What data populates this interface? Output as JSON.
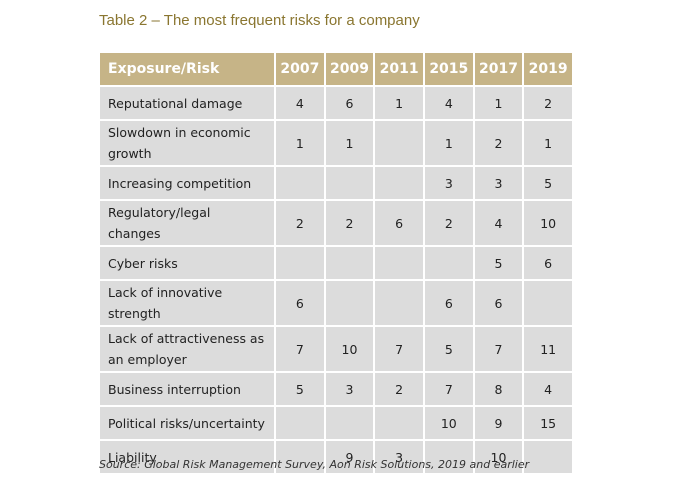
{
  "title": "Table 2 – The most frequent risks for a company",
  "table": {
    "header": [
      "Exposure/Risk",
      "2007",
      "2009",
      "2011",
      "2015",
      "2017",
      "2019"
    ],
    "rows": [
      [
        "Reputational damage",
        4,
        6,
        1,
        4,
        1,
        2
      ],
      [
        "Slowdown in economic growth",
        1,
        1,
        null,
        1,
        2,
        1
      ],
      [
        "Increasing competition",
        null,
        null,
        null,
        3,
        3,
        5
      ],
      [
        "Regulatory/legal changes",
        2,
        2,
        6,
        2,
        4,
        10
      ],
      [
        "Cyber risks",
        null,
        null,
        null,
        null,
        5,
        6
      ],
      [
        "Lack of innovative strength",
        6,
        null,
        null,
        6,
        6,
        null
      ],
      [
        "Lack of attractiveness as an employer",
        7,
        10,
        7,
        5,
        7,
        11
      ],
      [
        "Business interruption",
        5,
        3,
        2,
        7,
        8,
        4
      ],
      [
        "Political risks/uncertainty",
        null,
        null,
        null,
        10,
        9,
        15
      ],
      [
        "Liability",
        null,
        9,
        3,
        null,
        10,
        null
      ]
    ]
  },
  "source": "Source: Global Risk Management Survey, Aon Risk Solutions, 2019 and earlier"
}
